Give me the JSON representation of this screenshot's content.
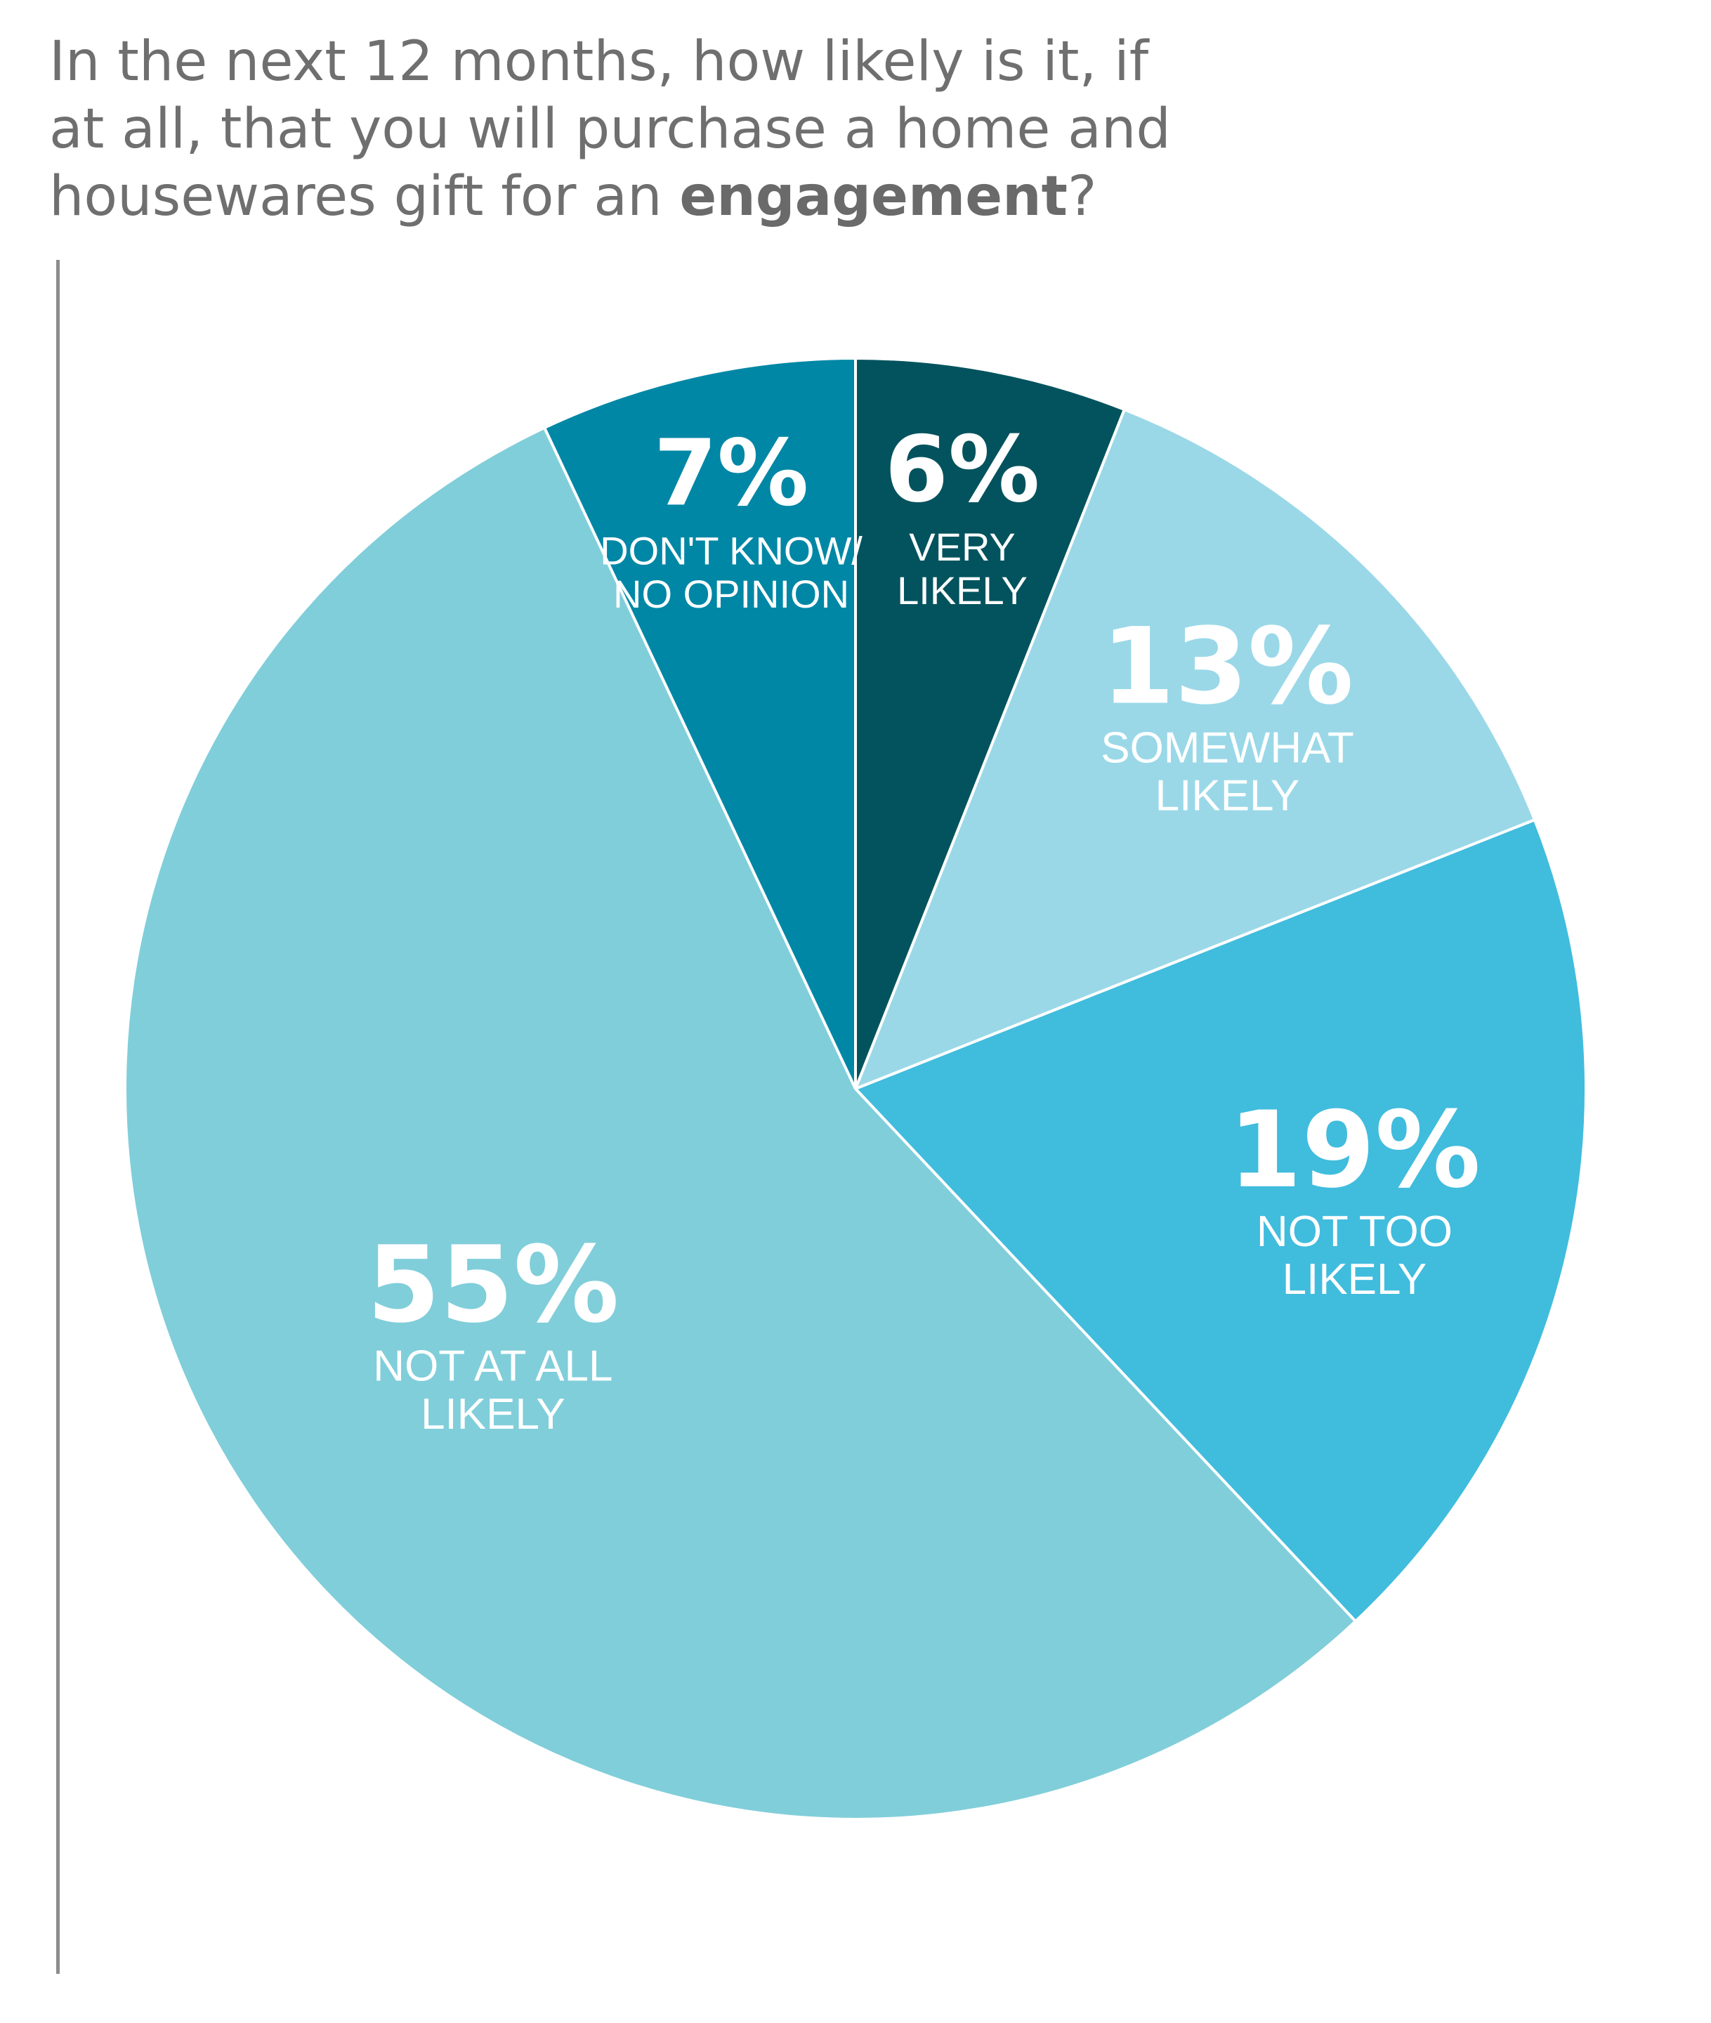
{
  "title": {
    "line1": "In the next 12 months, how likely is it, if",
    "line2": "at all, that you will purchase a home and",
    "line3_pre": "housewares gift for an ",
    "line3_bold": "engagement",
    "line3_post": "?"
  },
  "chart_data": {
    "type": "pie",
    "slices": [
      {
        "label_lines": [
          "VERY",
          "LIKELY"
        ],
        "value": 6,
        "value_label": "6%",
        "color": "#03535e"
      },
      {
        "label_lines": [
          "SOMEWHAT",
          "LIKELY"
        ],
        "value": 13,
        "value_label": "13%",
        "color": "#9ad8e8"
      },
      {
        "label_lines": [
          "NOT TOO",
          "LIKELY"
        ],
        "value": 19,
        "value_label": "19%",
        "color": "#40bcdd"
      },
      {
        "label_lines": [
          "NOT AT ALL",
          "LIKELY"
        ],
        "value": 55,
        "value_label": "55%",
        "color": "#80ceda"
      },
      {
        "label_lines": [
          "DON'T KNOW/",
          "NO OPINION"
        ],
        "value": 7,
        "value_label": "7%",
        "color": "#0087a5"
      }
    ]
  }
}
